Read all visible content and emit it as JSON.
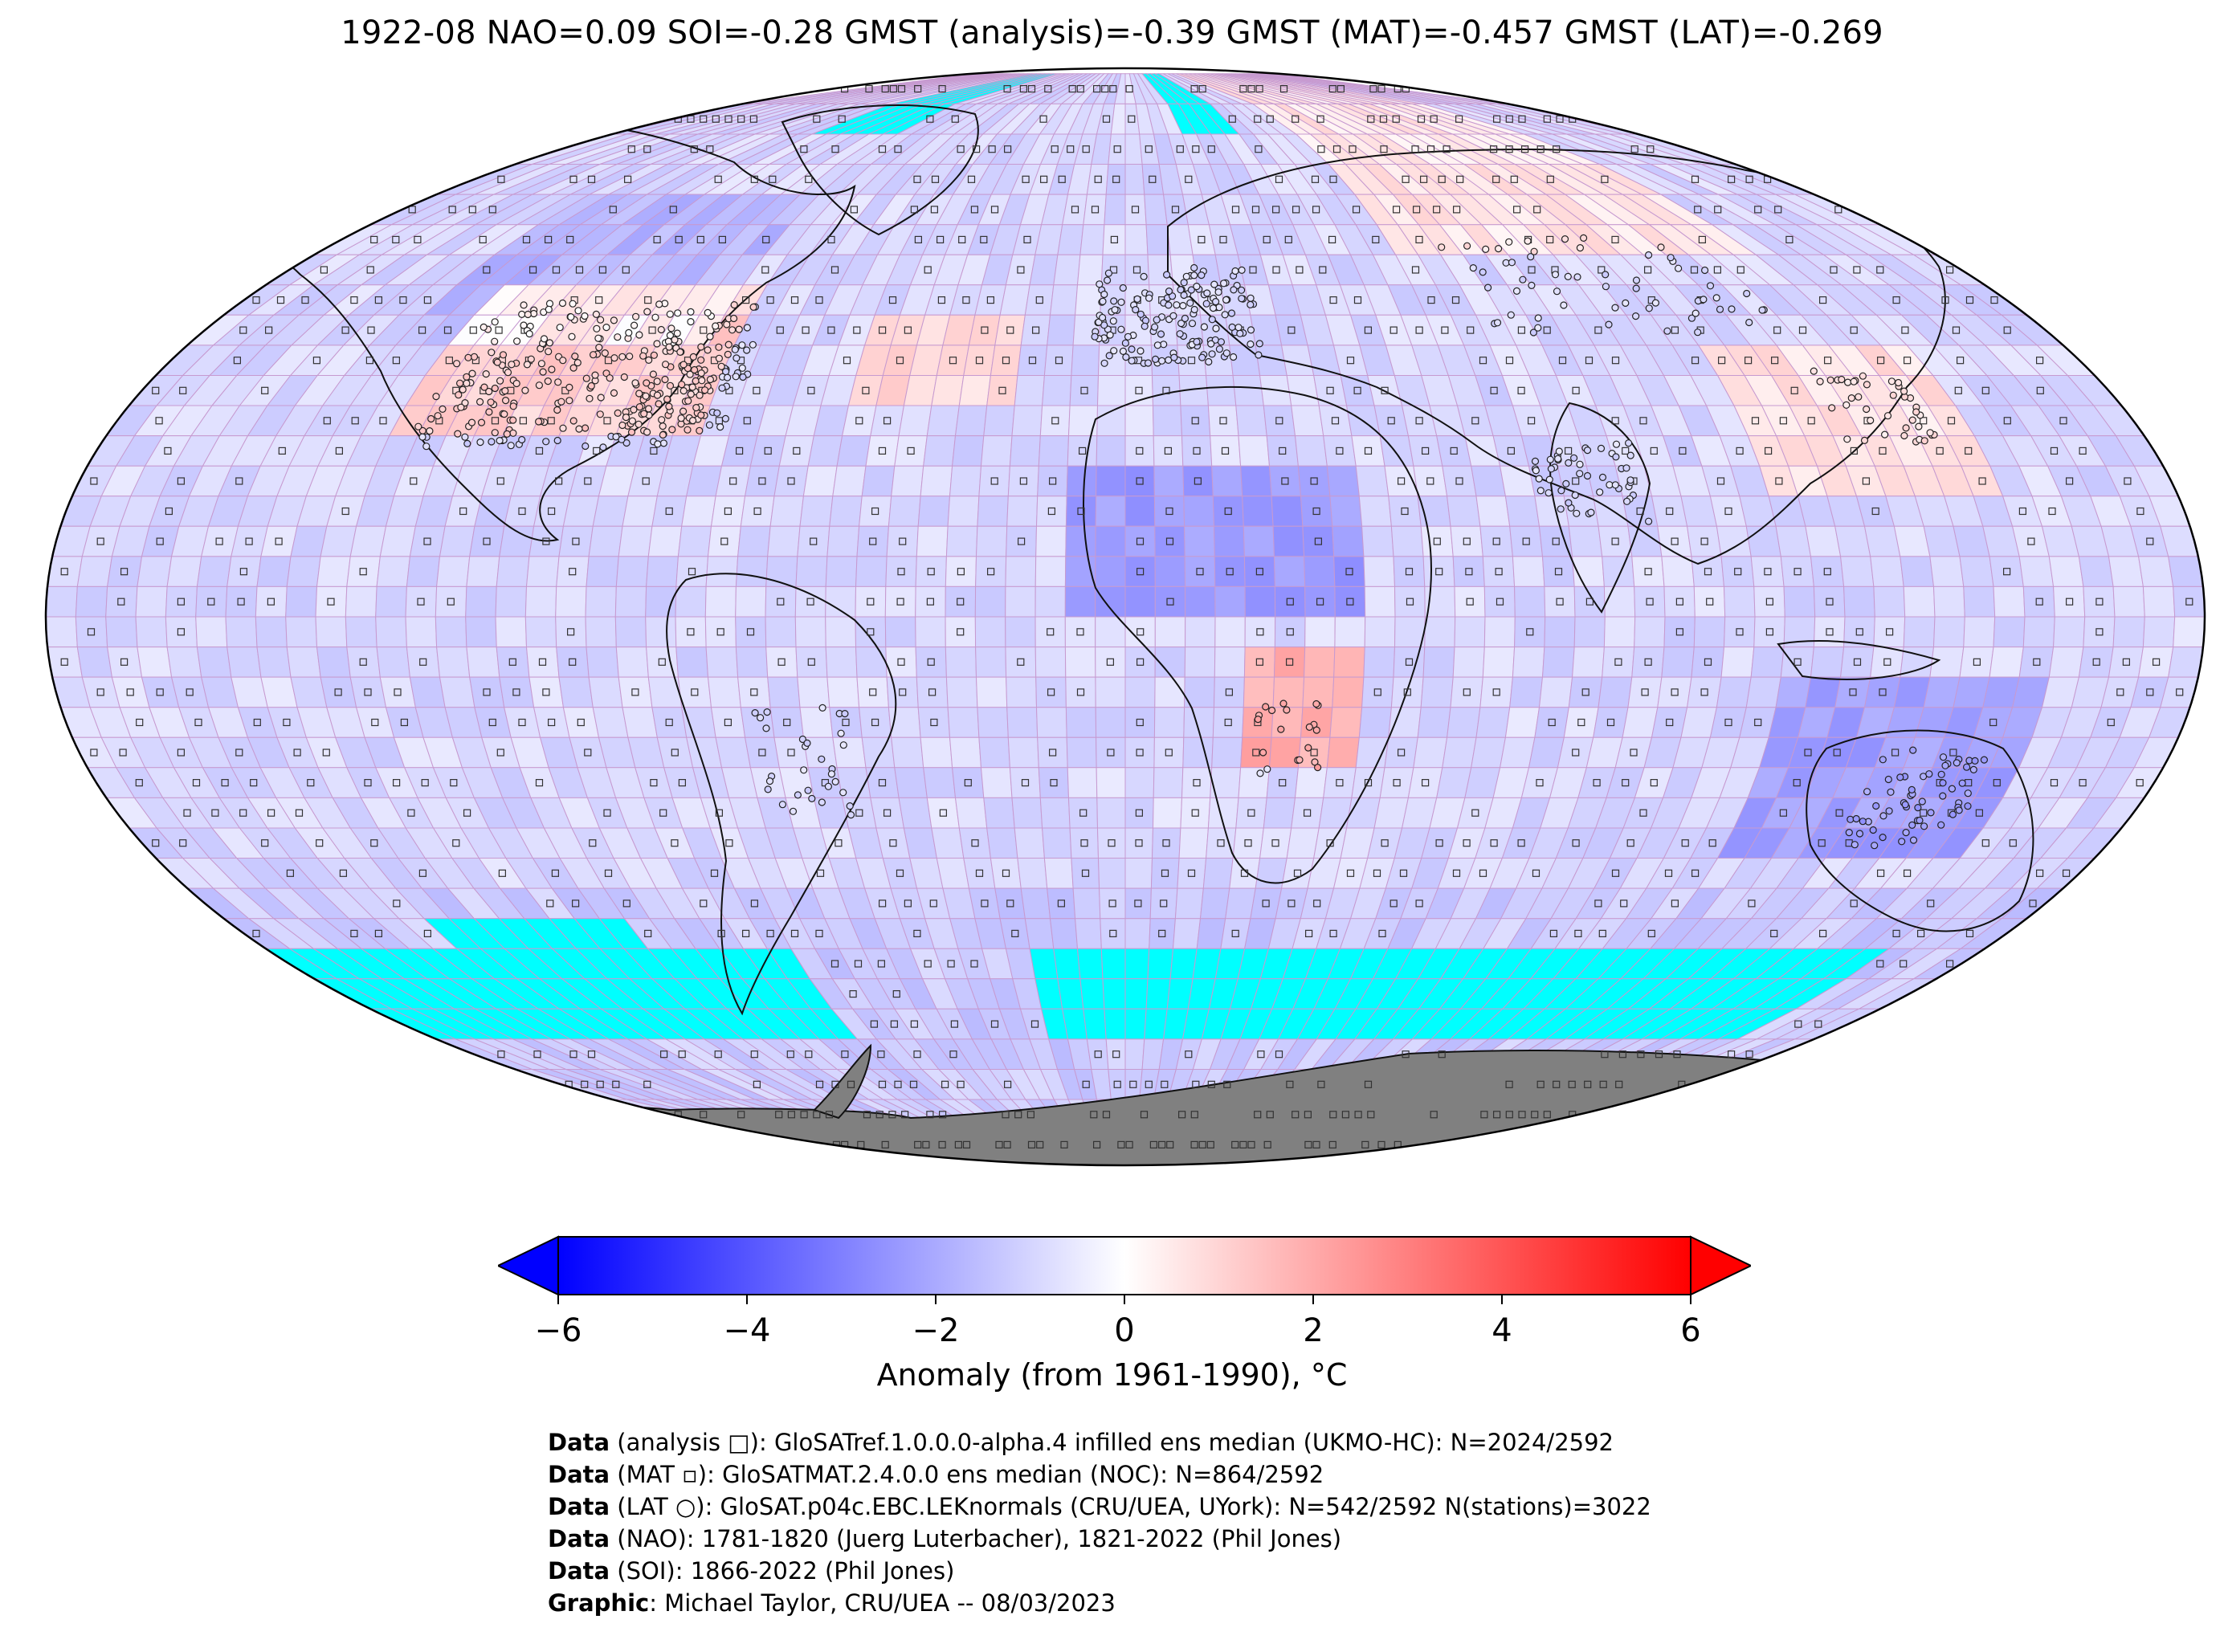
{
  "title": "1922-08 NAO=0.09 SOI=-0.28 GMST (analysis)=-0.39 GMST (MAT)=-0.457 GMST (LAT)=-0.269",
  "map": {
    "projection": "Robinson",
    "missing_colour": "#00ffff",
    "land_ice_colour": "#808080",
    "anomaly_regions": [
      {
        "name": "North America",
        "anomaly": 1.2
      },
      {
        "name": "North Atlantic",
        "anomaly": 1.0
      },
      {
        "name": "Central Africa",
        "anomaly": -1.5
      },
      {
        "name": "Southern Africa",
        "anomaly": 2.0
      },
      {
        "name": "Siberia",
        "anomaly": 0.8
      },
      {
        "name": "Australia",
        "anomaly": -1.8
      },
      {
        "name": "South Pacific",
        "anomaly": -1.2
      }
    ]
  },
  "colorbar": {
    "min": -6,
    "max": 6,
    "ticks": [
      "−6",
      "−4",
      "−2",
      "0",
      "2",
      "4",
      "6"
    ],
    "colors": [
      "#0000ff",
      "#ffffff",
      "#ff0000"
    ],
    "label": "Anomaly (from 1961-1990), °C"
  },
  "footer": [
    {
      "label": "Data",
      "text": " (analysis □): GloSATref.1.0.0.0-alpha.4 infilled ens median (UKMO-HC): N=2024/2592"
    },
    {
      "label": "Data",
      "text": " (MAT ▫): GloSATMAT.2.4.0.0 ens median (NOC): N=864/2592"
    },
    {
      "label": "Data",
      "text": " (LAT ○): GloSAT.p04c.EBC.LEKnormals (CRU/UEA, UYork): N=542/2592 N(stations)=3022"
    },
    {
      "label": "Data",
      "text": " (NAO): 1781-1820 (Juerg Luterbacher), 1821-2022 (Phil Jones)"
    },
    {
      "label": "Data",
      "text": " (SOI): 1866-2022 (Phil Jones)"
    },
    {
      "label": "Graphic",
      "text": ": Michael Taylor, CRU/UEA -- 08/03/2023"
    }
  ]
}
